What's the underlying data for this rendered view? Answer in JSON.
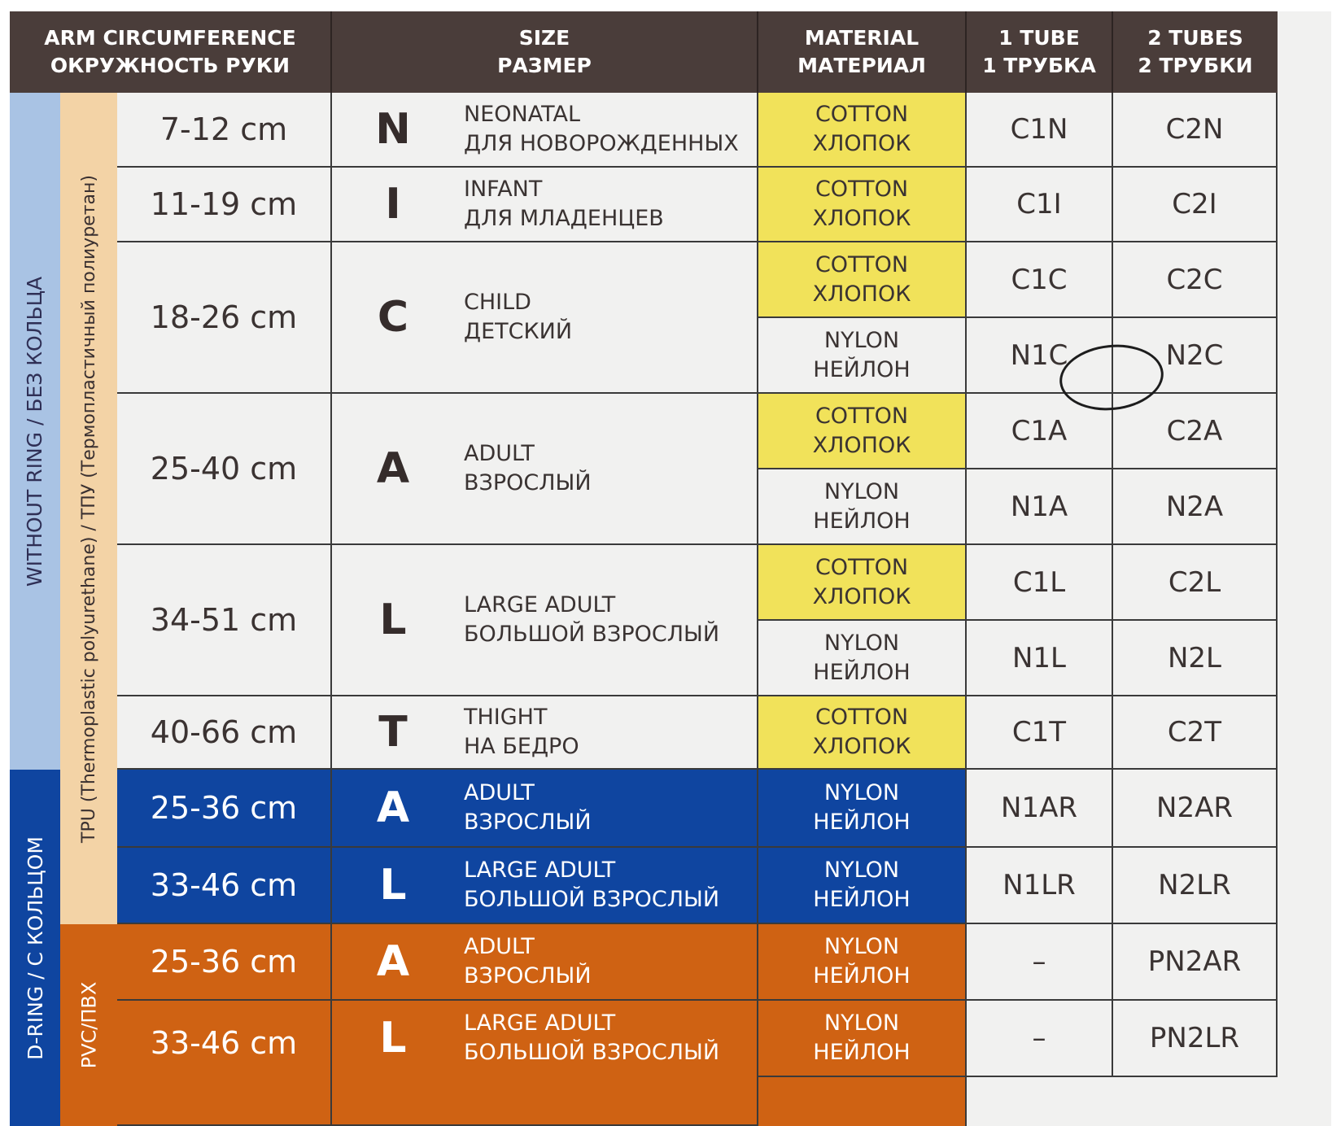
{
  "header": {
    "circumference_en": "ARM CIRCUMFERENCE",
    "circumference_ru": "ОКРУЖНОСТЬ РУКИ",
    "size_en": "SIZE",
    "size_ru": "РАЗМЕР",
    "material_en": "MATERIAL",
    "material_ru": "МАТЕРИАЛ",
    "tube1_en": "1 TUBE",
    "tube1_ru": "1 ТРУБКА",
    "tube2_en": "2 TUBES",
    "tube2_ru": "2 ТРУБКИ"
  },
  "side_labels": {
    "without_ring": "WITHOUT RING / БЕЗ КОЛЬЦА",
    "tpu": "TPU (Thermoplastic polyurethane) / ТПУ (Термопластичный полиуретан)",
    "d_ring": "D-RING / С КОЛЬЦОМ",
    "pvc": "PVC/ПВХ"
  },
  "sizes": [
    {
      "circumference": "7-12 cm",
      "letter": "N",
      "name_en": "NEONATAL",
      "name_ru": "ДЛЯ НОВОРОЖДЕННЫХ"
    },
    {
      "circumference": "11-19 cm",
      "letter": "I",
      "name_en": "INFANT",
      "name_ru": "ДЛЯ МЛАДЕНЦЕВ"
    },
    {
      "circumference": "18-26 cm",
      "letter": "C",
      "name_en": "CHILD",
      "name_ru": "ДЕТСКИЙ"
    },
    {
      "circumference": "25-40 cm",
      "letter": "A",
      "name_en": "ADULT",
      "name_ru": "ВЗРОСЛЫЙ"
    },
    {
      "circumference": "34-51 cm",
      "letter": "L",
      "name_en": "LARGE ADULT",
      "name_ru": "БОЛЬШОЙ ВЗРОСЛЫЙ"
    },
    {
      "circumference": "40-66 cm",
      "letter": "T",
      "name_en": "THIGHT",
      "name_ru": "НА БЕДРО"
    },
    {
      "circumference": "25-36 cm",
      "letter": "A",
      "name_en": "ADULT",
      "name_ru": "ВЗРОСЛЫЙ"
    },
    {
      "circumference": "33-46 cm",
      "letter": "L",
      "name_en": "LARGE ADULT",
      "name_ru": "БОЛЬШОЙ ВЗРОСЛЫЙ"
    },
    {
      "circumference": "25-36 cm",
      "letter": "A",
      "name_en": "ADULT",
      "name_ru": "ВЗРОСЛЫЙ"
    },
    {
      "circumference": "33-46 cm",
      "letter": "L",
      "name_en": "LARGE ADULT",
      "name_ru": "БОЛЬШОЙ ВЗРОСЛЫЙ"
    }
  ],
  "rows": [
    {
      "material_en": "COTTON",
      "material_ru": "ХЛОПОК",
      "tube1": "C1N",
      "tube2": "C2N"
    },
    {
      "material_en": "COTTON",
      "material_ru": "ХЛОПОК",
      "tube1": "C1I",
      "tube2": "C2I"
    },
    {
      "material_en": "COTTON",
      "material_ru": "ХЛОПОК",
      "tube1": "C1C",
      "tube2": "C2C"
    },
    {
      "material_en": "NYLON",
      "material_ru": "НЕЙЛОН",
      "tube1": "N1C",
      "tube2": "N2C"
    },
    {
      "material_en": "COTTON",
      "material_ru": "ХЛОПОК",
      "tube1": "C1A",
      "tube2": "C2A"
    },
    {
      "material_en": "NYLON",
      "material_ru": "НЕЙЛОН",
      "tube1": "N1A",
      "tube2": "N2A"
    },
    {
      "material_en": "COTTON",
      "material_ru": "ХЛОПОК",
      "tube1": "C1L",
      "tube2": "C2L"
    },
    {
      "material_en": "NYLON",
      "material_ru": "НЕЙЛОН",
      "tube1": "N1L",
      "tube2": "N2L"
    },
    {
      "material_en": "COTTON",
      "material_ru": "ХЛОПОК",
      "tube1": "C1T",
      "tube2": "C2T"
    },
    {
      "material_en": "NYLON",
      "material_ru": "НЕЙЛОН",
      "tube1": "N1AR",
      "tube2": "N2AR"
    },
    {
      "material_en": "NYLON",
      "material_ru": "НЕЙЛОН",
      "tube1": "N1LR",
      "tube2": "N2LR"
    },
    {
      "material_en": "NYLON",
      "material_ru": "НЕЙЛОН",
      "tube1": "–",
      "tube2": "PN2AR"
    },
    {
      "material_en": "NYLON",
      "material_ru": "НЕЙЛОН",
      "tube1": "–",
      "tube2": "PN2LR"
    }
  ],
  "colors": {
    "header": "#4a3d3a",
    "cotton": "#f1e25a",
    "d_ring": "#0f45a0",
    "pvc": "#cf6213",
    "tpu_strip": "#f3d3a6",
    "side_strip": "#a9c3e4"
  }
}
